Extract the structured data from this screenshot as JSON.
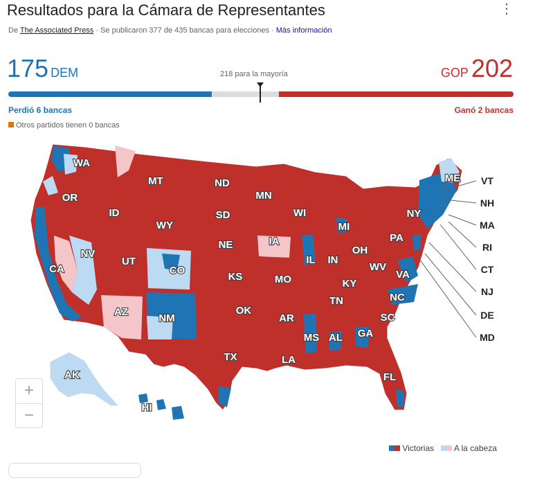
{
  "header": {
    "title": "Resultados para la Cámara de Representantes",
    "source_prefix": "De",
    "source_name": "The Associated Press",
    "source_detail": "· Se publicaron 377 de 435 bancas para elecciones ·",
    "more_info": "Más información",
    "menu_icon": "more-vert-icon"
  },
  "summary": {
    "dem_count": "175",
    "dem_party": "DEM",
    "gop_count": "202",
    "gop_party": "GOP",
    "majority_label": "218 para la mayoría",
    "dem_change": "Perdió 6 bancas",
    "gop_change": "Ganó 2 bancas",
    "others": "Otros partidos tienen 0 bancas",
    "dem_seats": 175,
    "gop_seats": 202,
    "total_seats": 435,
    "majority_seats": 218
  },
  "colors": {
    "dem": "#1f74b3",
    "dem_lead": "#bcdaf2",
    "gop": "#c0302b",
    "gop_lead": "#f5c6c9",
    "other": "#e37400",
    "undecided": "#dadce0"
  },
  "map": {
    "state_labels": [
      "WA",
      "OR",
      "CA",
      "NV",
      "ID",
      "MT",
      "WY",
      "UT",
      "AZ",
      "CO",
      "NM",
      "ND",
      "SD",
      "NE",
      "KS",
      "OK",
      "TX",
      "MN",
      "IA",
      "MO",
      "AR",
      "LA",
      "WI",
      "IL",
      "MS",
      "AL",
      "TN",
      "KY",
      "IN",
      "MI",
      "OH",
      "WV",
      "VA",
      "NC",
      "SC",
      "GA",
      "FL",
      "PA",
      "NY",
      "ME",
      "AK",
      "HI"
    ],
    "northeast_labels": [
      "VT",
      "NH",
      "MA",
      "RI",
      "CT",
      "NJ",
      "DE",
      "MD"
    ]
  },
  "zoom": {
    "in": "+",
    "out": "−"
  },
  "legend": {
    "won": "Victorias",
    "leading": "A la cabeza"
  }
}
